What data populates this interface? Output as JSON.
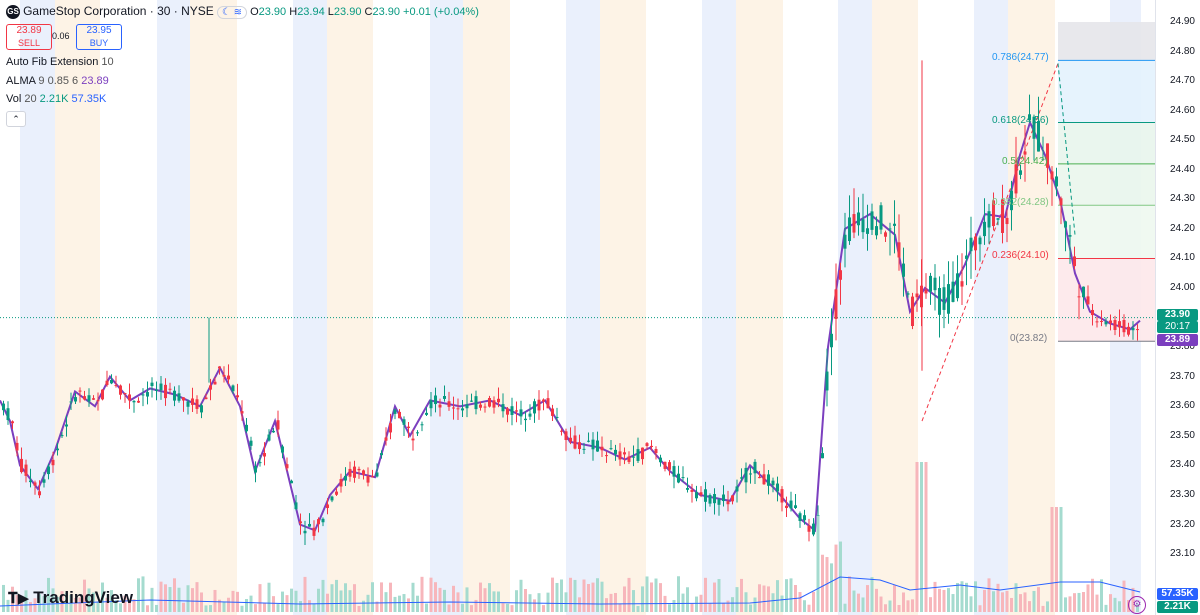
{
  "symbol": {
    "icon": "GS",
    "title": "GameStop Corporation · 30 · NYSE",
    "ohlc": [
      {
        "label": "O",
        "value": "23.90"
      },
      {
        "label": "H",
        "value": "23.94"
      },
      {
        "label": "L",
        "value": "23.90"
      },
      {
        "label": "C",
        "value": "23.90"
      }
    ],
    "change": "+0.01 (+0.04%)"
  },
  "trade": {
    "sell_price": "23.89",
    "sell_label": "SELL",
    "spread": "0.06",
    "buy_price": "23.95",
    "buy_label": "BUY"
  },
  "indicators": {
    "fib": {
      "name": "Auto Fib Extension",
      "value": "10"
    },
    "alma": {
      "name": "ALMA",
      "params": "9 0.85 6",
      "value": "23.89"
    },
    "vol": {
      "name": "Vol",
      "params": "20",
      "value1": "2.21K",
      "value2": "57.35K"
    }
  },
  "price_axis": [
    "24.90",
    "24.80",
    "24.70",
    "24.60",
    "24.50",
    "24.40",
    "24.30",
    "24.20",
    "24.10",
    "24.00",
    "23.90",
    "23.80",
    "23.70",
    "23.60",
    "23.50",
    "23.40",
    "23.30",
    "23.20",
    "23.10"
  ],
  "axis_tags": {
    "last_price": "23.90",
    "countdown": "20:17",
    "alma": "23.89",
    "vol_ma": "57.35K",
    "vol": "2.21K"
  },
  "fib_levels": [
    {
      "label": "0.786(24.77)",
      "price": 24.77,
      "color": "#2196f3"
    },
    {
      "label": "0.618(24.56)",
      "price": 24.56,
      "color": "#089981"
    },
    {
      "label": "0.5(24.42)",
      "price": 24.42,
      "color": "#4caf50"
    },
    {
      "label": "0.382(24.28)",
      "price": 24.28,
      "color": "#81c784"
    },
    {
      "label": "0.236(24.10)",
      "price": 24.1,
      "color": "#f23645"
    },
    {
      "label": "0(23.82)",
      "price": 23.82,
      "color": "#787b86"
    }
  ],
  "watermark": "TradingView",
  "colors": {
    "up": "#089981",
    "down": "#f23645",
    "alma": "#7b3fbf",
    "vol_ma": "#2962ff"
  }
}
